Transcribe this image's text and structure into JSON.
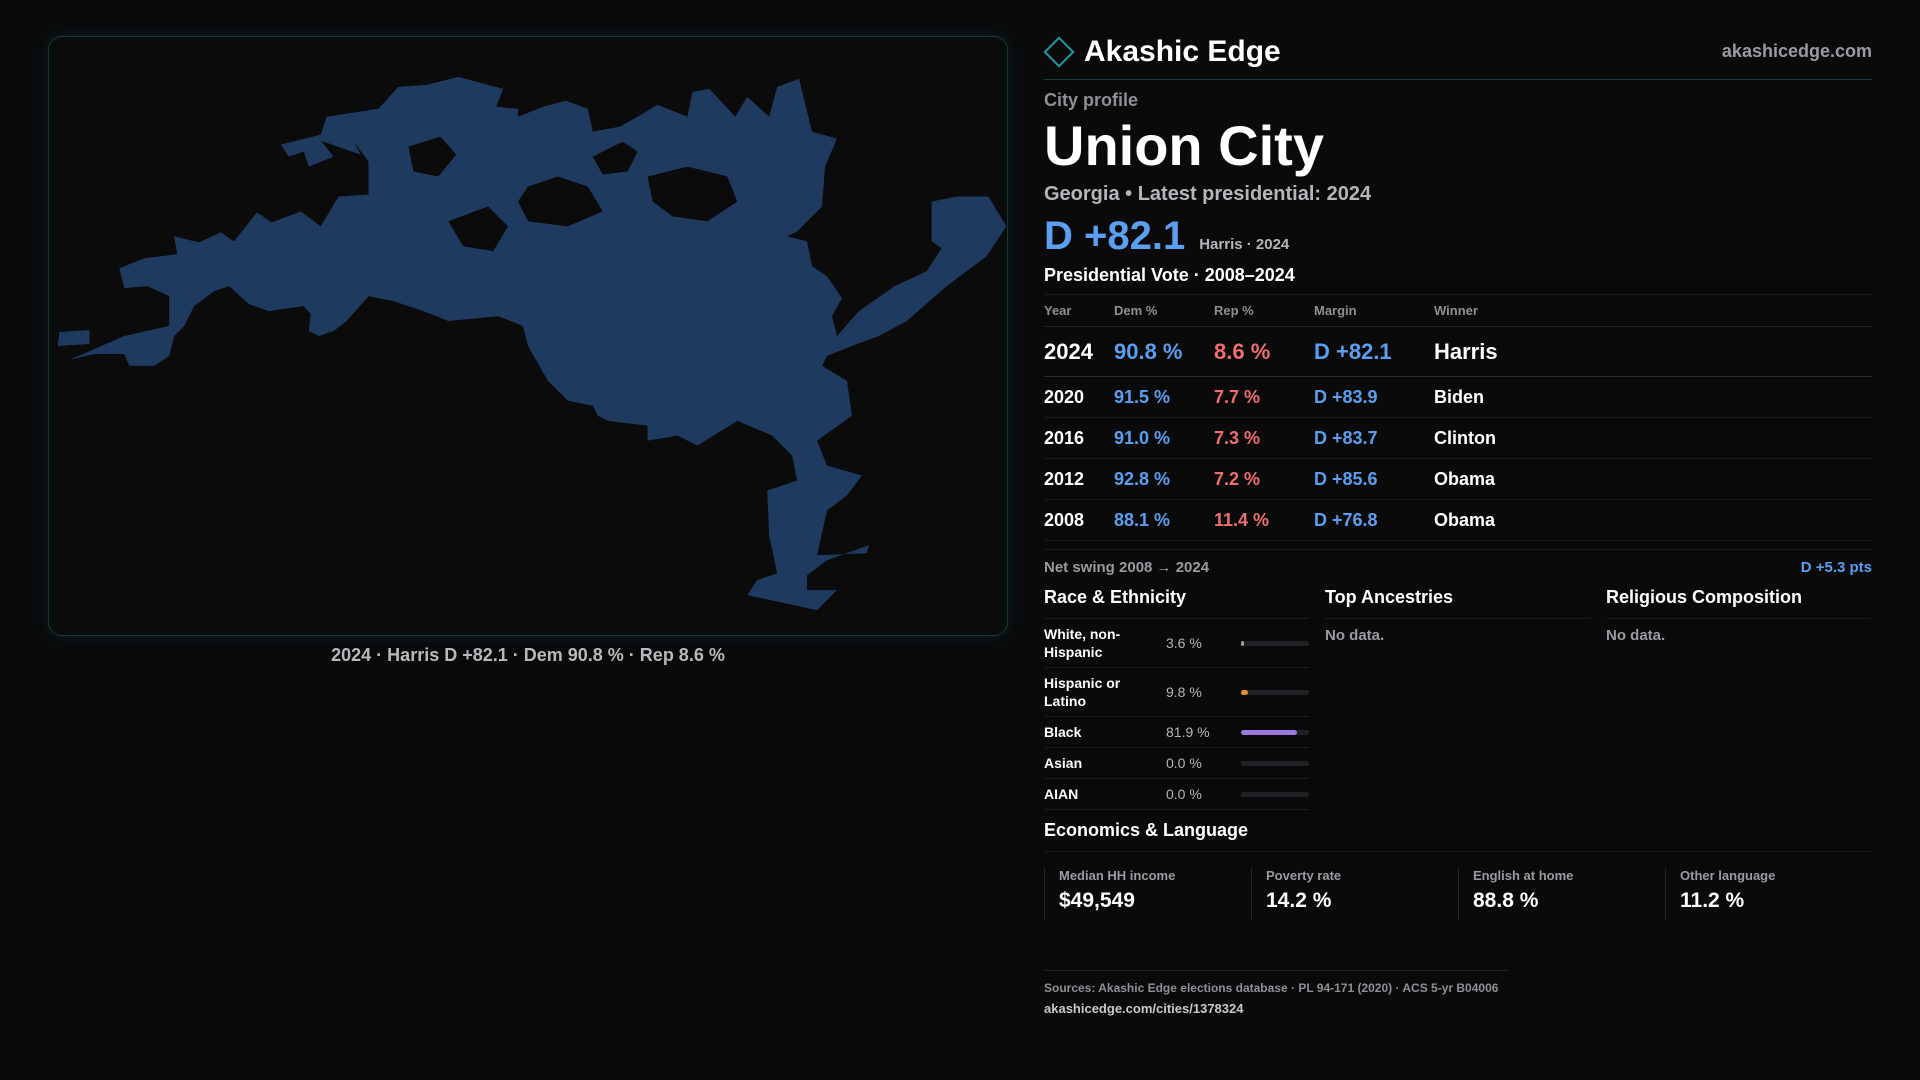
{
  "brand": {
    "name": "Akashic Edge",
    "url": "akashicedge.com",
    "logo_icon": "diamond-icon"
  },
  "profile": {
    "eyebrow": "City profile",
    "city": "Union City",
    "subtitle": "Georgia • Latest presidential: 2024",
    "headline_margin": "D +82.1",
    "headline_note": "Harris · 2024"
  },
  "map": {
    "caption": "2024 · Harris D +82.1 · Dem 90.8 % · Rep 8.6 %",
    "fill_color": "#1e3a5f"
  },
  "votes": {
    "title": "Presidential Vote · 2008–2024",
    "headers": [
      "Year",
      "Dem %",
      "Rep %",
      "Margin",
      "Winner"
    ],
    "rows": [
      {
        "year": "2024",
        "dem": "90.8 %",
        "rep": "8.6 %",
        "margin": "D +82.1",
        "winner": "Harris"
      },
      {
        "year": "2020",
        "dem": "91.5 %",
        "rep": "7.7 %",
        "margin": "D +83.9",
        "winner": "Biden"
      },
      {
        "year": "2016",
        "dem": "91.0 %",
        "rep": "7.3 %",
        "margin": "D +83.7",
        "winner": "Clinton"
      },
      {
        "year": "2012",
        "dem": "92.8 %",
        "rep": "7.2 %",
        "margin": "D +85.6",
        "winner": "Obama"
      },
      {
        "year": "2008",
        "dem": "88.1 %",
        "rep": "11.4 %",
        "margin": "D +76.8",
        "winner": "Obama"
      }
    ],
    "swing_label": "Net swing 2008 → 2024",
    "swing_value": "D +5.3 pts"
  },
  "race": {
    "title": "Race & Ethnicity",
    "rows": [
      {
        "label": "White, non-Hispanic",
        "pct": "3.6 %",
        "share": 0.036,
        "color": "#9a9aa0"
      },
      {
        "label": "Hispanic or Latino",
        "pct": "9.8 %",
        "share": 0.098,
        "color": "#e0932a"
      },
      {
        "label": "Black",
        "pct": "81.9 %",
        "share": 0.819,
        "color": "#9a78e0"
      },
      {
        "label": "Asian",
        "pct": "0.0 %",
        "share": 0.0,
        "color": "#5b9ff0"
      },
      {
        "label": "AIAN",
        "pct": "0.0 %",
        "share": 0.0,
        "color": "#5b9ff0"
      }
    ]
  },
  "ancestries": {
    "title": "Top Ancestries",
    "empty": "No data."
  },
  "religion": {
    "title": "Religious Composition",
    "empty": "No data."
  },
  "economics": {
    "title": "Economics & Language",
    "cards": [
      {
        "label": "Median HH income",
        "value": "$49,549"
      },
      {
        "label": "Poverty rate",
        "value": "14.2 %"
      },
      {
        "label": "English at home",
        "value": "88.8 %"
      },
      {
        "label": "Other language",
        "value": "11.2 %"
      }
    ]
  },
  "footer": {
    "sources": "Sources: Akashic Edge elections database · PL 94-171 (2020) · ACS 5-yr B04006",
    "link": "akashicedge.com/cities/1378324"
  }
}
